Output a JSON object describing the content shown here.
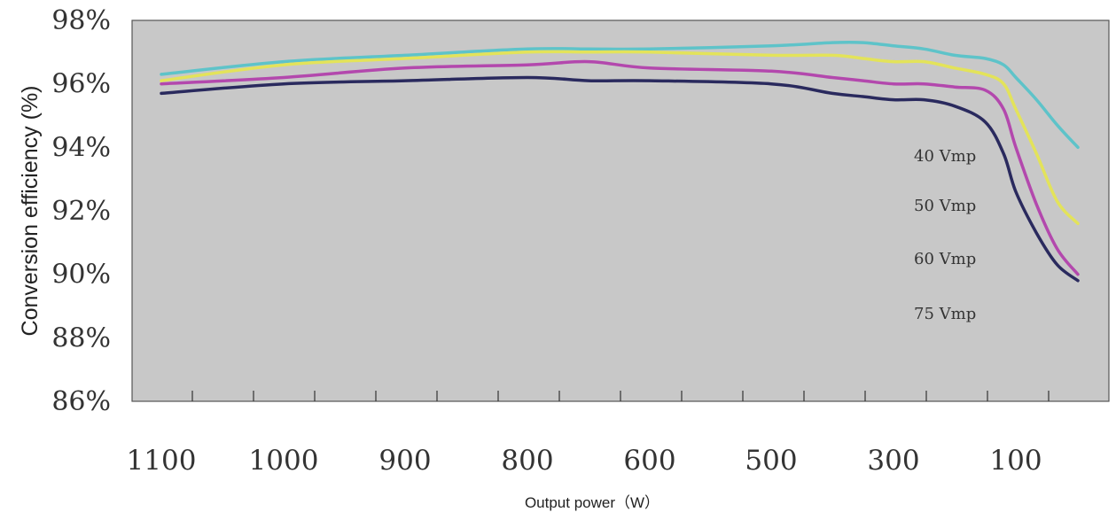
{
  "chart_data": {
    "type": "line",
    "title": "",
    "xlabel": "Output power（W）",
    "ylabel": "Conversion efficiency (%)",
    "x_ticks": [
      1100,
      1000,
      900,
      800,
      600,
      500,
      300,
      100
    ],
    "y_ticks": [
      "86%",
      "88%",
      "90%",
      "92%",
      "94%",
      "96%",
      "98%"
    ],
    "ylim": [
      86,
      98
    ],
    "grid": false,
    "background_color": "#c8c8c8",
    "legend_placement": "right",
    "series": [
      {
        "name": "40 Vmp",
        "color": "#5ec3c9",
        "x": [
          1100,
          1000,
          900,
          800,
          700,
          600,
          500,
          400,
          350,
          300,
          250,
          200,
          150,
          120,
          100,
          80,
          60,
          40
        ],
        "y": [
          96.3,
          96.7,
          96.9,
          97.1,
          97.1,
          97.1,
          97.2,
          97.3,
          97.3,
          97.2,
          97.1,
          96.9,
          96.8,
          96.6,
          96.2,
          95.5,
          94.7,
          94.0
        ]
      },
      {
        "name": "50 Vmp",
        "color": "#e3e35a",
        "x": [
          1100,
          1000,
          900,
          800,
          700,
          600,
          500,
          400,
          350,
          300,
          250,
          200,
          150,
          120,
          100,
          80,
          60,
          40
        ],
        "y": [
          96.1,
          96.6,
          96.8,
          97.0,
          97.0,
          97.0,
          96.9,
          96.9,
          96.8,
          96.7,
          96.7,
          96.5,
          96.3,
          96.0,
          95.2,
          93.8,
          92.3,
          91.6
        ]
      },
      {
        "name": "60 Vmp",
        "color": "#b348ad",
        "x": [
          1100,
          1000,
          900,
          800,
          700,
          600,
          500,
          400,
          350,
          300,
          250,
          200,
          150,
          120,
          100,
          80,
          60,
          40
        ],
        "y": [
          96.0,
          96.2,
          96.5,
          96.6,
          96.7,
          96.5,
          96.4,
          96.2,
          96.1,
          96.0,
          96.0,
          95.9,
          95.8,
          95.2,
          94.0,
          92.2,
          90.8,
          90.0
        ]
      },
      {
        "name": "75 Vmp",
        "color": "#2a2a5e",
        "x": [
          1100,
          1000,
          900,
          800,
          700,
          600,
          500,
          400,
          350,
          300,
          250,
          200,
          150,
          120,
          100,
          80,
          60,
          40
        ],
        "y": [
          95.7,
          96.0,
          96.1,
          96.2,
          96.1,
          96.1,
          96.0,
          95.7,
          95.6,
          95.5,
          95.5,
          95.3,
          94.8,
          93.8,
          92.6,
          91.3,
          90.3,
          89.8
        ]
      }
    ]
  }
}
